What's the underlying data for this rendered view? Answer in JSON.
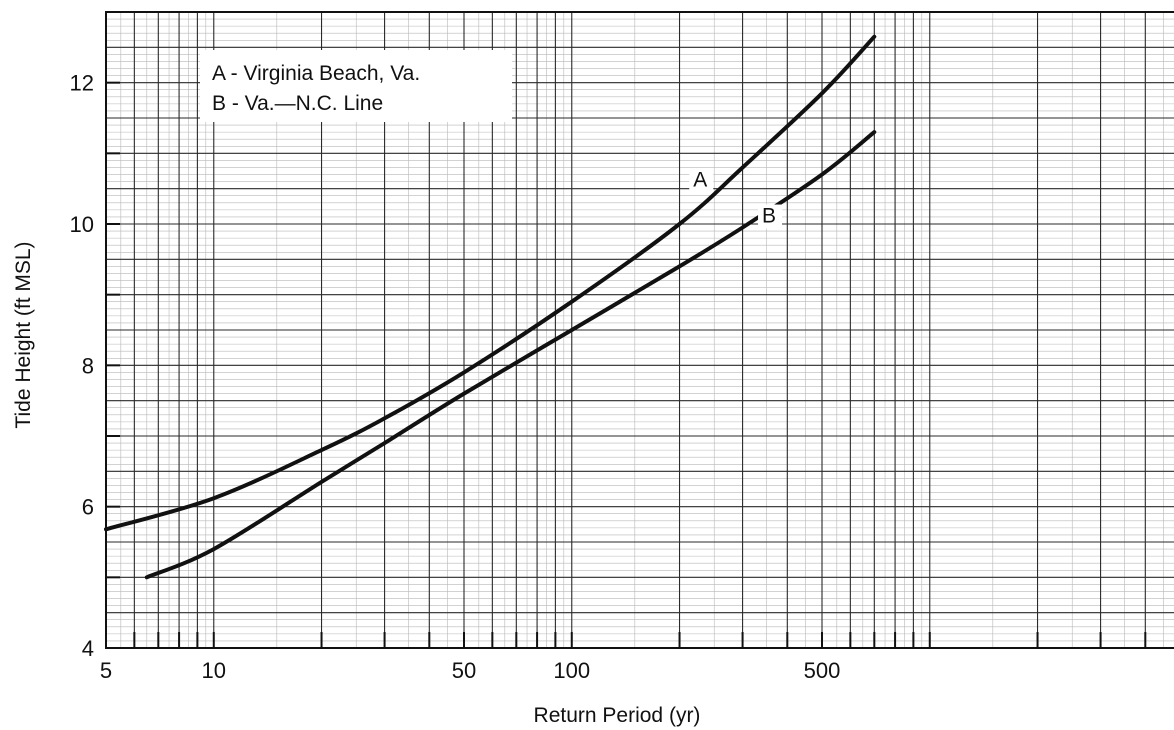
{
  "chart_data": {
    "type": "line",
    "title": "",
    "xlabel": "Return Period (yr)",
    "ylabel": "Tide Height (ft MSL)",
    "x_scale": "log",
    "xlim": [
      5,
      5000
    ],
    "ylim": [
      4,
      13
    ],
    "x_tick_labels": [
      "5",
      "10",
      "50",
      "100",
      "500"
    ],
    "x_ticks": [
      5,
      10,
      50,
      100,
      500
    ],
    "y_ticks": [
      4,
      6,
      8,
      10,
      12
    ],
    "y_tick_labels": [
      "4",
      "6",
      "8",
      "10",
      "12"
    ],
    "grid": true,
    "legend": {
      "placement": "top-left",
      "entries": [
        "A - Virginia Beach, Va.",
        "B - Va.—N.C. Line"
      ]
    },
    "series": [
      {
        "name": "A",
        "x": [
          5,
          10,
          20,
          30,
          50,
          100,
          200,
          300,
          500,
          700
        ],
        "y": [
          5.68,
          6.12,
          6.8,
          7.25,
          7.9,
          8.9,
          10.0,
          10.8,
          11.85,
          12.65
        ]
      },
      {
        "name": "B",
        "x": [
          6.5,
          10,
          20,
          30,
          50,
          100,
          200,
          300,
          500,
          700
        ],
        "y": [
          5.0,
          5.4,
          6.35,
          6.9,
          7.6,
          8.5,
          9.4,
          9.95,
          10.7,
          11.3
        ]
      }
    ]
  },
  "colors": {
    "grid_major": "#2a2a2a",
    "grid_minor": "#b8b8b8",
    "curve": "#111111",
    "background": "#ffffff"
  }
}
